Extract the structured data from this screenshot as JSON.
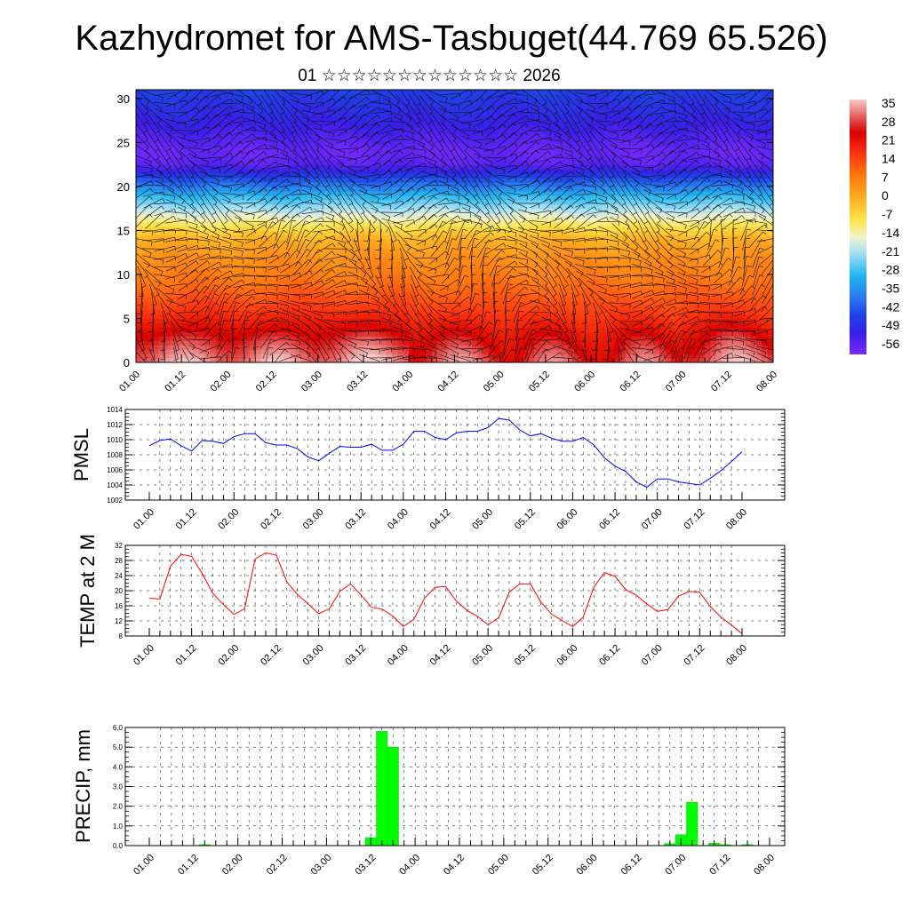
{
  "page": {
    "title": "Kazhydromet for AMS-Tasbuget(44.769 65.526)",
    "subtitle": "01 ☆☆☆☆☆☆☆☆☆☆☆☆☆ 2026"
  },
  "colors": {
    "pmsl_line": "#0000ff",
    "temp_line": "#ff0000",
    "precip_bar": "#00ff00",
    "precip_bar_edge": "#00cc00",
    "grid": "#000000"
  },
  "chart_data": [
    {
      "id": "cross-section",
      "type": "heatmap",
      "title": "",
      "x_tick_labels": [
        "01.00",
        "01.12",
        "02.00",
        "02.12",
        "03.00",
        "03.12",
        "04.00",
        "04.12",
        "05.00",
        "05.12",
        "06.00",
        "06.12",
        "07.00",
        "07.12",
        "08.00"
      ],
      "y_ticks": [
        0,
        5,
        10,
        15,
        20,
        25,
        30
      ],
      "ylim": [
        0,
        31
      ],
      "colorbar": {
        "labels": [
          "35",
          "28",
          "21",
          "14",
          "7",
          "0",
          "-7",
          "-14",
          "-21",
          "-28",
          "-35",
          "-42",
          "-49",
          "-56"
        ],
        "range": [
          -60,
          38
        ]
      },
      "temperature_profile": {
        "levels": [
          0,
          3,
          6,
          9,
          12,
          14,
          15.5,
          17,
          19,
          21,
          22.5,
          24,
          27,
          31
        ],
        "values": [
          30,
          24,
          16,
          10,
          5,
          0,
          -8,
          -18,
          -30,
          -44,
          -56,
          -58,
          -52,
          -45
        ]
      },
      "surface_warm_anomaly_by_day": [
        8,
        8,
        10,
        3,
        0,
        0,
        6,
        9
      ],
      "wind_barbs": true
    },
    {
      "id": "pmsl",
      "type": "line",
      "ylabel": "PMSL",
      "ylim": [
        1002,
        1014
      ],
      "y_ticks": [
        1002,
        1004,
        1006,
        1008,
        1010,
        1012,
        1014
      ],
      "x_tick_labels": [
        "01.00",
        "01.12",
        "02.00",
        "02.12",
        "03.00",
        "03.12",
        "04.00",
        "04.12",
        "05.00",
        "05.12",
        "06.00",
        "06.12",
        "07.00",
        "07.12",
        "08.00"
      ],
      "x_step_hours": 3,
      "series": [
        {
          "name": "PMSL",
          "values": [
            1009.2,
            1009.9,
            1010.1,
            1009.2,
            1008.5,
            1009.9,
            1009.8,
            1009.5,
            1010.4,
            1010.8,
            1010.8,
            1009.6,
            1009.3,
            1009.3,
            1008.8,
            1007.7,
            1007.2,
            1008.2,
            1009.1,
            1009.0,
            1009.0,
            1009.4,
            1008.6,
            1008.6,
            1009.4,
            1011.1,
            1011.1,
            1010.3,
            1010.0,
            1010.9,
            1011.1,
            1011.1,
            1011.6,
            1012.8,
            1012.6,
            1011.3,
            1010.5,
            1010.8,
            1010.2,
            1009.8,
            1009.8,
            1010.3,
            1009.3,
            1007.6,
            1006.5,
            1005.8,
            1004.4,
            1003.7,
            1004.8,
            1004.8,
            1004.4,
            1004.2,
            1004.0,
            1004.9,
            1005.9,
            1007.1,
            1008.4
          ]
        }
      ]
    },
    {
      "id": "temp2m",
      "type": "line",
      "ylabel": "TEMP at 2 M",
      "ylim": [
        8,
        32
      ],
      "y_ticks": [
        8,
        12,
        16,
        20,
        24,
        28,
        32
      ],
      "x_tick_labels": [
        "01.00",
        "01.12",
        "02.00",
        "02.12",
        "03.00",
        "03.12",
        "04.00",
        "04.12",
        "05.00",
        "05.12",
        "06.00",
        "06.12",
        "07.00",
        "07.12",
        "08.00"
      ],
      "x_step_hours": 3,
      "series": [
        {
          "name": "T2M",
          "values": [
            18.0,
            17.8,
            26.5,
            29.6,
            29.1,
            24.5,
            19.3,
            16.3,
            13.7,
            15.2,
            28.4,
            30.0,
            29.4,
            22.3,
            19.0,
            16.5,
            13.9,
            15.2,
            19.8,
            21.8,
            18.9,
            15.6,
            15.1,
            13.3,
            10.5,
            12.4,
            18.0,
            20.9,
            21.1,
            17.3,
            14.8,
            13.2,
            11.0,
            12.8,
            19.6,
            21.8,
            21.8,
            17.0,
            13.8,
            12.1,
            10.5,
            13.0,
            21.0,
            24.8,
            23.8,
            20.3,
            18.8,
            16.5,
            14.5,
            15.0,
            18.6,
            19.8,
            19.6,
            15.8,
            13.0,
            10.9,
            8.6
          ]
        }
      ]
    },
    {
      "id": "precip",
      "type": "bar",
      "ylabel": "PRECIP, mm",
      "ylim": [
        0,
        6
      ],
      "y_ticks": [
        "0.0",
        "1.0",
        "2.0",
        "3.0",
        "4.0",
        "5.0",
        "6.0"
      ],
      "x_tick_labels": [
        "01.00",
        "01.12",
        "02.00",
        "02.12",
        "03.00",
        "03.12",
        "04.00",
        "04.12",
        "05.00",
        "05.12",
        "06.00",
        "06.12",
        "07.00",
        "07.12",
        "08.00"
      ],
      "x_step_hours": 3,
      "values": [
        0,
        0,
        0,
        0,
        0,
        0.05,
        0,
        0,
        0,
        0,
        0,
        0,
        0,
        0,
        0,
        0,
        0,
        0,
        0,
        0,
        0.4,
        5.8,
        5.0,
        0,
        0,
        0,
        0,
        0,
        0,
        0,
        0,
        0,
        0,
        0,
        0,
        0,
        0,
        0,
        0,
        0,
        0,
        0,
        0,
        0,
        0,
        0,
        0,
        0.1,
        0.55,
        2.2,
        0,
        0.12,
        0.05,
        0,
        0.05,
        0,
        0
      ]
    }
  ]
}
